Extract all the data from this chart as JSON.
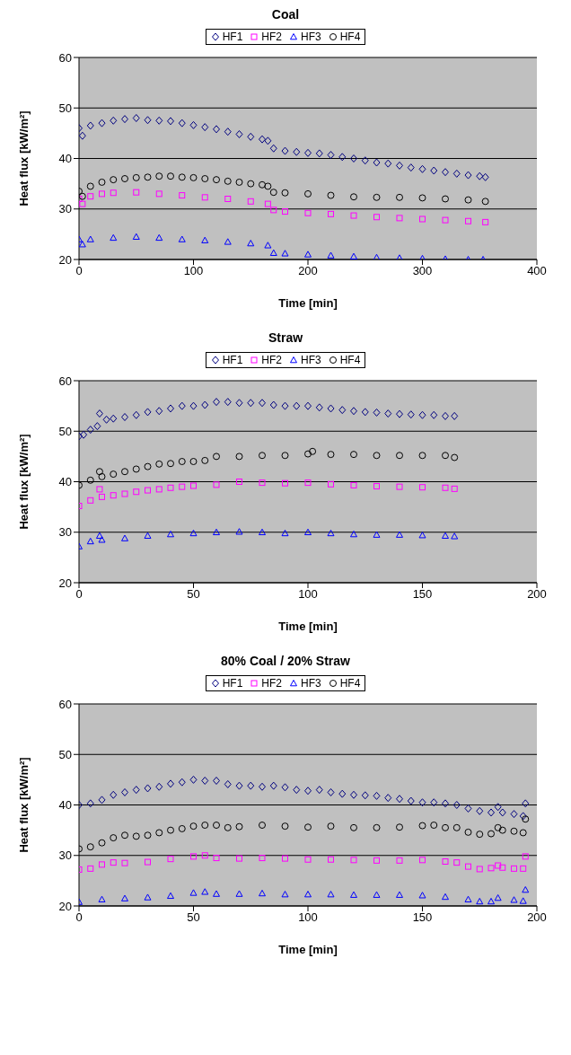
{
  "chart_data": [
    {
      "type": "scatter",
      "title": "Coal",
      "xlabel": "Time [min]",
      "ylabel": "Heat flux [kW/m²]",
      "xlim": [
        0,
        400
      ],
      "xticks": [
        0,
        100,
        200,
        300,
        400
      ],
      "ylim": [
        20,
        60
      ],
      "yticks": [
        20,
        30,
        40,
        50,
        60
      ],
      "grid": "y",
      "legend": "top",
      "series": [
        {
          "name": "HF1",
          "color": "#000080",
          "marker": "diamond",
          "x": [
            0,
            3,
            10,
            20,
            30,
            40,
            50,
            60,
            70,
            80,
            90,
            100,
            110,
            120,
            130,
            140,
            150,
            160,
            165,
            170,
            180,
            190,
            200,
            210,
            220,
            230,
            240,
            250,
            260,
            270,
            280,
            290,
            300,
            310,
            320,
            330,
            340,
            350,
            355
          ],
          "values": [
            46,
            44.5,
            46.5,
            47,
            47.5,
            47.8,
            48,
            47.6,
            47.5,
            47.4,
            47,
            46.6,
            46.2,
            45.8,
            45.3,
            44.8,
            44.3,
            43.8,
            43.5,
            42,
            41.5,
            41.3,
            41.1,
            41,
            40.7,
            40.3,
            40,
            39.6,
            39.2,
            39,
            38.6,
            38.2,
            37.9,
            37.6,
            37.3,
            37,
            36.7,
            36.5,
            36.3
          ]
        },
        {
          "name": "HF2",
          "color": "#ff00ff",
          "marker": "square",
          "x": [
            0,
            3,
            10,
            20,
            30,
            50,
            70,
            90,
            110,
            130,
            150,
            165,
            170,
            180,
            200,
            220,
            240,
            260,
            280,
            300,
            320,
            340,
            355
          ],
          "values": [
            32,
            31,
            32.5,
            33,
            33.2,
            33.3,
            33,
            32.7,
            32.3,
            32,
            31.5,
            31,
            29.8,
            29.5,
            29.2,
            29,
            28.7,
            28.4,
            28.2,
            28,
            27.8,
            27.6,
            27.4
          ]
        },
        {
          "name": "HF3",
          "color": "#0000ff",
          "marker": "triangle",
          "x": [
            0,
            3,
            10,
            30,
            50,
            70,
            90,
            110,
            130,
            150,
            165,
            170,
            180,
            200,
            220,
            240,
            260,
            280,
            300,
            320,
            340,
            353
          ],
          "values": [
            24,
            23,
            24,
            24.3,
            24.5,
            24.3,
            24,
            23.8,
            23.5,
            23.2,
            22.8,
            21.3,
            21.2,
            21,
            20.8,
            20.6,
            20.4,
            20.3,
            20.2,
            20.1,
            20,
            20
          ]
        },
        {
          "name": "HF4",
          "color": "#000000",
          "marker": "circle",
          "x": [
            0,
            3,
            10,
            20,
            30,
            40,
            50,
            60,
            70,
            80,
            90,
            100,
            110,
            120,
            130,
            140,
            150,
            160,
            165,
            170,
            180,
            200,
            220,
            240,
            260,
            280,
            300,
            320,
            340,
            355
          ],
          "values": [
            33.5,
            32.5,
            34.5,
            35.3,
            35.8,
            36,
            36.2,
            36.3,
            36.5,
            36.5,
            36.3,
            36.2,
            36,
            35.8,
            35.5,
            35.3,
            35,
            34.8,
            34.5,
            33.3,
            33.2,
            33,
            32.7,
            32.4,
            32.3,
            32.3,
            32.2,
            32,
            31.8,
            31.5
          ]
        }
      ]
    },
    {
      "type": "scatter",
      "title": "Straw",
      "xlabel": "Time [min]",
      "ylabel": "Heat flux [kW/m²]",
      "xlim": [
        0,
        200
      ],
      "xticks": [
        0,
        50,
        100,
        150,
        200
      ],
      "ylim": [
        20,
        60
      ],
      "yticks": [
        20,
        30,
        40,
        50,
        60
      ],
      "grid": "y",
      "legend": "top",
      "series": [
        {
          "name": "HF1",
          "color": "#000080",
          "marker": "diamond",
          "x": [
            0,
            2,
            5,
            8,
            9,
            12,
            15,
            20,
            25,
            30,
            35,
            40,
            45,
            50,
            55,
            60,
            65,
            70,
            75,
            80,
            85,
            90,
            95,
            100,
            105,
            110,
            115,
            120,
            125,
            130,
            135,
            140,
            145,
            150,
            155,
            160,
            164
          ],
          "values": [
            49,
            49.3,
            50.3,
            51,
            53.5,
            52.3,
            52.5,
            52.8,
            53.2,
            53.8,
            54,
            54.5,
            55,
            55,
            55.2,
            55.8,
            55.8,
            55.6,
            55.6,
            55.6,
            55.2,
            55,
            55,
            55,
            54.7,
            54.5,
            54.2,
            54,
            53.8,
            53.7,
            53.5,
            53.4,
            53.3,
            53.2,
            53.2,
            53,
            53
          ]
        },
        {
          "name": "HF2",
          "color": "#ff00ff",
          "marker": "square",
          "x": [
            0,
            5,
            9,
            10,
            15,
            20,
            25,
            30,
            35,
            40,
            45,
            50,
            60,
            70,
            80,
            90,
            100,
            110,
            120,
            130,
            140,
            150,
            160,
            164
          ],
          "values": [
            35.2,
            36.3,
            38.5,
            37,
            37.3,
            37.6,
            38,
            38.3,
            38.5,
            38.8,
            39,
            39.2,
            39.4,
            40,
            39.8,
            39.7,
            39.8,
            39.5,
            39.3,
            39.1,
            39,
            38.9,
            38.8,
            38.6
          ]
        },
        {
          "name": "HF3",
          "color": "#0000ff",
          "marker": "triangle",
          "x": [
            0,
            5,
            9,
            10,
            20,
            30,
            40,
            50,
            60,
            70,
            80,
            90,
            100,
            110,
            120,
            130,
            140,
            150,
            160,
            164
          ],
          "values": [
            27.2,
            28.2,
            29.3,
            28.5,
            28.8,
            29.3,
            29.6,
            29.8,
            30,
            30.1,
            30,
            29.8,
            30,
            29.8,
            29.6,
            29.5,
            29.5,
            29.4,
            29.3,
            29.2
          ]
        },
        {
          "name": "HF4",
          "color": "#000000",
          "marker": "circle",
          "x": [
            0,
            5,
            9,
            10,
            15,
            20,
            25,
            30,
            35,
            40,
            45,
            50,
            55,
            60,
            70,
            80,
            90,
            100,
            102,
            110,
            120,
            130,
            140,
            150,
            160,
            164
          ],
          "values": [
            39.3,
            40.3,
            42,
            41,
            41.5,
            42,
            42.5,
            43,
            43.5,
            43.6,
            44,
            44,
            44.2,
            45,
            45,
            45.2,
            45.2,
            45.5,
            46,
            45.4,
            45.4,
            45.2,
            45.2,
            45.2,
            45.2,
            44.8
          ]
        }
      ]
    },
    {
      "type": "scatter",
      "title": "80% Coal / 20% Straw",
      "xlabel": "Time [min]",
      "ylabel": "Heat flux [kW/m²]",
      "xlim": [
        0,
        200
      ],
      "xticks": [
        0,
        50,
        100,
        150,
        200
      ],
      "ylim": [
        20,
        60
      ],
      "yticks": [
        20,
        30,
        40,
        50,
        60
      ],
      "grid": "y",
      "legend": "top",
      "series": [
        {
          "name": "HF1",
          "color": "#000080",
          "marker": "diamond",
          "x": [
            0,
            5,
            10,
            15,
            20,
            25,
            30,
            35,
            40,
            45,
            50,
            55,
            60,
            65,
            70,
            75,
            80,
            85,
            90,
            95,
            100,
            105,
            110,
            115,
            120,
            125,
            130,
            135,
            140,
            145,
            150,
            155,
            160,
            165,
            170,
            175,
            180,
            183,
            185,
            190,
            194,
            195
          ],
          "values": [
            40,
            40.3,
            41,
            42,
            42.5,
            43,
            43.3,
            43.6,
            44.2,
            44.5,
            45,
            44.8,
            44.8,
            44.1,
            43.8,
            43.8,
            43.6,
            43.8,
            43.5,
            43,
            42.8,
            43,
            42.5,
            42.2,
            42,
            41.9,
            41.8,
            41.4,
            41.2,
            40.8,
            40.5,
            40.5,
            40.3,
            40,
            39.3,
            38.8,
            38.5,
            39.6,
            38.5,
            38.2,
            37.8,
            40.3
          ]
        },
        {
          "name": "HF2",
          "color": "#ff00ff",
          "marker": "square",
          "x": [
            0,
            5,
            10,
            15,
            20,
            30,
            40,
            50,
            55,
            60,
            70,
            80,
            90,
            100,
            110,
            120,
            130,
            140,
            150,
            160,
            165,
            170,
            175,
            180,
            183,
            185,
            190,
            194,
            195
          ],
          "values": [
            27.2,
            27.4,
            28.2,
            28.6,
            28.5,
            28.7,
            29.3,
            29.8,
            30,
            29.5,
            29.4,
            29.5,
            29.4,
            29.2,
            29.2,
            29.1,
            29,
            29,
            29.1,
            28.8,
            28.6,
            27.8,
            27.3,
            27.5,
            28,
            27.6,
            27.4,
            27.4,
            29.8
          ]
        },
        {
          "name": "HF3",
          "color": "#0000ff",
          "marker": "triangle",
          "x": [
            0,
            10,
            20,
            30,
            40,
            50,
            55,
            60,
            70,
            80,
            90,
            100,
            110,
            120,
            130,
            140,
            150,
            160,
            170,
            175,
            180,
            183,
            190,
            194,
            195
          ],
          "values": [
            20.8,
            21.3,
            21.5,
            21.7,
            22,
            22.6,
            22.8,
            22.4,
            22.4,
            22.5,
            22.3,
            22.3,
            22.3,
            22.2,
            22.2,
            22.2,
            22.1,
            21.8,
            21.3,
            20.9,
            20.9,
            21.6,
            21.2,
            21,
            23.2
          ]
        },
        {
          "name": "HF4",
          "color": "#000000",
          "marker": "circle",
          "x": [
            0,
            5,
            10,
            15,
            20,
            25,
            30,
            35,
            40,
            45,
            50,
            55,
            60,
            65,
            70,
            80,
            90,
            100,
            110,
            120,
            130,
            140,
            150,
            155,
            160,
            165,
            170,
            175,
            180,
            183,
            185,
            190,
            194,
            195
          ],
          "values": [
            31.3,
            31.7,
            32.5,
            33.5,
            34,
            33.8,
            34,
            34.5,
            35,
            35.3,
            35.8,
            36,
            36,
            35.5,
            35.7,
            36,
            35.8,
            35.6,
            35.8,
            35.5,
            35.5,
            35.6,
            35.9,
            36,
            35.5,
            35.5,
            34.6,
            34.2,
            34.3,
            35.5,
            35,
            34.8,
            34.5,
            37.2
          ]
        }
      ]
    }
  ]
}
